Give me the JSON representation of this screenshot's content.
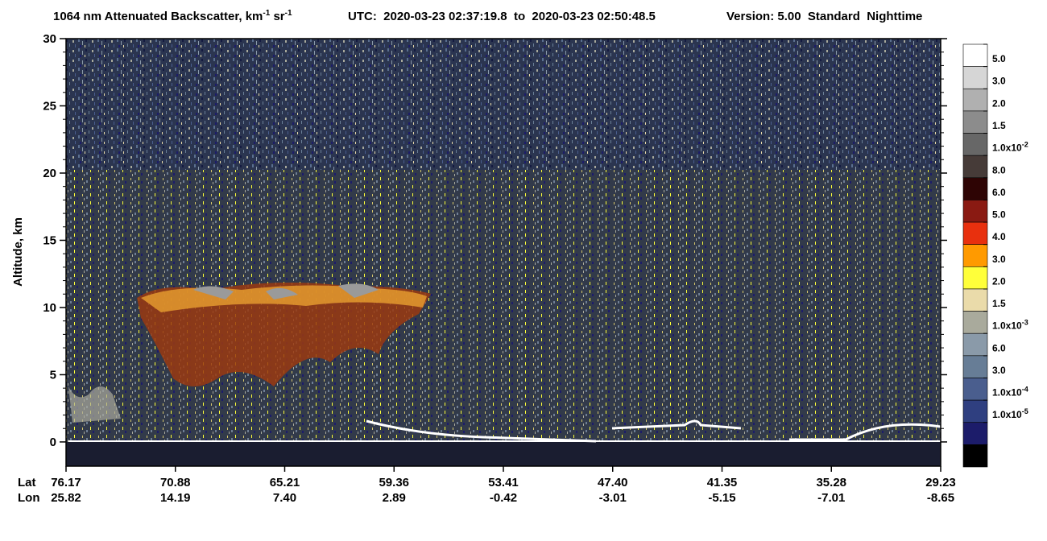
{
  "chart_data": {
    "type": "curtain",
    "title": {
      "main": "1064 nm Attenuated Backscatter, km",
      "sup1": "-1",
      "mid": " sr",
      "sup2": "-1",
      "time": "UTC:  2020-03-23 02:37:19.8  to  2020-03-23 02:50:48.5",
      "version": "Version: 5.00  Standard  Nighttime"
    },
    "y_label": "Altitude, km",
    "ylim": [
      -1.8,
      30
    ],
    "yticks": [
      0,
      5,
      10,
      15,
      20,
      25,
      30
    ],
    "x_row_labels": [
      "Lat",
      "Lon"
    ],
    "lat": [
      "76.17",
      "70.88",
      "65.21",
      "59.36",
      "53.41",
      "47.40",
      "41.35",
      "35.28",
      "29.23"
    ],
    "lon": [
      "25.82",
      "14.19",
      "7.40",
      "2.89",
      "-0.42",
      "-3.01",
      "-5.15",
      "-7.01",
      "-8.65"
    ],
    "colorbar": {
      "colors": [
        "#ffffff",
        "#d6d6d6",
        "#b0b0b0",
        "#8c8c8c",
        "#676767",
        "#463b38",
        "#2e0404",
        "#8a1a12",
        "#e8300e",
        "#ff9a00",
        "#ffff3a",
        "#eadbaa",
        "#a9aa9c",
        "#8a9aa9",
        "#677d96",
        "#4a5e8e",
        "#2f3f80",
        "#1c1c6a",
        "#000000"
      ],
      "labels": [
        "5.0",
        "3.0",
        "2.0",
        "1.5",
        {
          "text": "1.0x10",
          "sup": "-2"
        },
        "8.0",
        "6.0",
        "5.0",
        "4.0",
        "3.0",
        "2.0",
        "1.5",
        {
          "text": "1.0x10",
          "sup": "-3"
        },
        "6.0",
        "3.0",
        {
          "text": "1.0x10",
          "sup": "-4"
        },
        {
          "text": "1.0x10",
          "sup": "-5"
        }
      ]
    }
  }
}
